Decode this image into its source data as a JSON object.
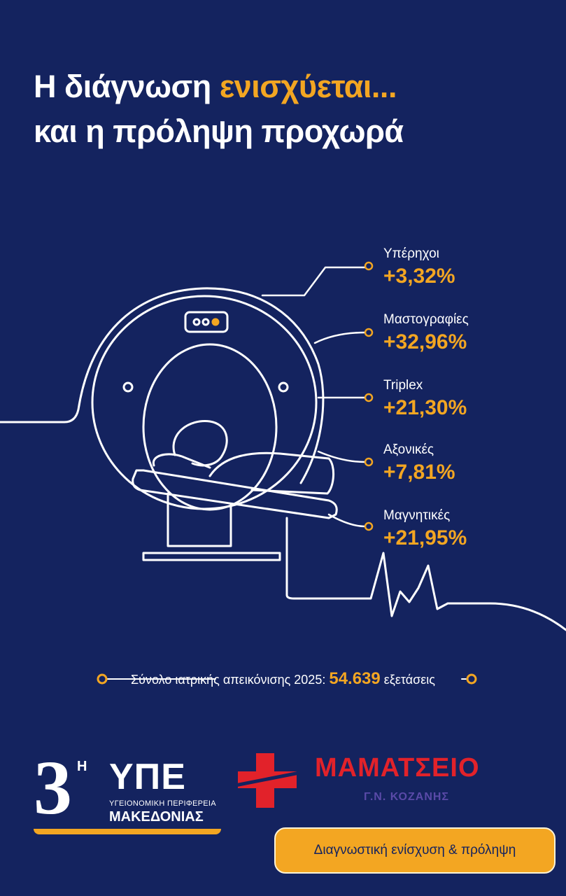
{
  "title": {
    "line1_start": "Η διάγνωση",
    "line1_highlight": "ενισχύεται...",
    "line2": "και η πρόληψη προχωρά"
  },
  "stats": [
    {
      "label": "Υπέρηχοι",
      "value": "+3,32%"
    },
    {
      "label": "Μαστογραφίες",
      "value": "+32,96%"
    },
    {
      "label": "Triplex",
      "value": "+21,30%"
    },
    {
      "label": "Αξονικές",
      "value": "+7,81%"
    },
    {
      "label": "Μαγνητικές",
      "value": "+21,95%"
    }
  ],
  "total": {
    "label": "Σύνολο ιατρικής απεικόνισης 2025:",
    "value": "54.639",
    "unit": "εξετάσεις"
  },
  "logos": {
    "ype": {
      "mark": "3",
      "superscript": "Η",
      "name": "ΥΠΕ",
      "line1": "ΥΓΕΙΟΝΟΜΙΚΗ ΠΕΡΙΦΕΡΕΙΑ",
      "line2": "ΜΑΚΕΔΟΝΙΑΣ"
    },
    "hospital": {
      "name": "ΜΑΜΑΤΣΕΙΟ",
      "subtitle": "Γ.Ν. ΚΟΖΑΝΗΣ"
    }
  },
  "tagline": "Διαγνωστική ενίσχυση & πρόληψη"
}
